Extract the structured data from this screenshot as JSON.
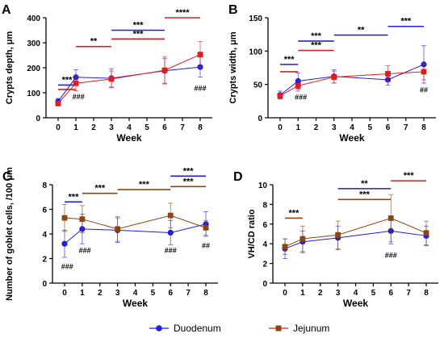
{
  "chart_data": [
    {
      "panel_label": "A",
      "type": "line",
      "ylabel": "Crypts depth, μm",
      "xlabel": "Week",
      "x_ticks": [
        0,
        1,
        2,
        3,
        4,
        5,
        6,
        7,
        8
      ],
      "ylim": [
        0,
        400
      ],
      "y_ticks": [
        0,
        100,
        200,
        300,
        400
      ],
      "series": [
        {
          "style": "duodenum",
          "x": [
            0,
            1,
            3,
            6,
            8
          ],
          "values": [
            65,
            162,
            158,
            188,
            203
          ],
          "err": [
            12,
            30,
            38,
            50,
            40
          ],
          "color": "#1f1fd6",
          "marker": "circle"
        },
        {
          "style": "jejunum",
          "x": [
            0,
            1,
            3,
            6,
            8
          ],
          "values": [
            57,
            138,
            155,
            190,
            253
          ],
          "err": [
            8,
            30,
            32,
            55,
            52
          ],
          "color": "#e21c1c",
          "marker": "square"
        }
      ],
      "significance": [
        {
          "x1": 0,
          "x2": 1,
          "y": 131,
          "label": "***",
          "color": "#1f1fd6"
        },
        {
          "x1": 0,
          "x2": 1,
          "y": 113,
          "label": "",
          "color": "#e21c1c"
        },
        {
          "x1": 1,
          "x2": 3,
          "y": 285,
          "label": "**",
          "color": "#e21c1c"
        },
        {
          "x1": 3,
          "x2": 6,
          "y": 350,
          "label": "***",
          "color": "#1f1fd6"
        },
        {
          "x1": 3,
          "x2": 6,
          "y": 315,
          "label": "***",
          "color": "#e21c1c"
        },
        {
          "x1": 6,
          "x2": 8,
          "y": 400,
          "label": "****",
          "color": "#e21c1c"
        }
      ],
      "annotations": [
        {
          "x": 1.15,
          "y": 75,
          "text": "###"
        },
        {
          "x": 8,
          "y": 108,
          "text": "###"
        }
      ]
    },
    {
      "panel_label": "B",
      "type": "line",
      "ylabel": "Crypts width, μm",
      "xlabel": "Week",
      "x_ticks": [
        0,
        1,
        2,
        3,
        4,
        5,
        6,
        7,
        8
      ],
      "ylim": [
        0,
        150
      ],
      "y_ticks": [
        0,
        50,
        100,
        150
      ],
      "series": [
        {
          "style": "duodenum",
          "x": [
            0,
            1,
            3,
            6,
            8
          ],
          "values": [
            34,
            55,
            62,
            57,
            80
          ],
          "err": [
            6,
            12,
            10,
            8,
            28
          ],
          "color": "#1f1fd6",
          "marker": "circle"
        },
        {
          "style": "jejunum",
          "x": [
            0,
            1,
            3,
            6,
            8
          ],
          "values": [
            33,
            48,
            61,
            66,
            69
          ],
          "err": [
            4,
            8,
            9,
            12,
            12
          ],
          "color": "#e21c1c",
          "marker": "square"
        }
      ],
      "significance": [
        {
          "x1": 0,
          "x2": 1,
          "y": 80,
          "label": "***",
          "color": "#1f1fd6"
        },
        {
          "x1": 0,
          "x2": 1,
          "y": 69,
          "label": "",
          "color": "#e21c1c"
        },
        {
          "x1": 1,
          "x2": 3,
          "y": 115,
          "label": "***",
          "color": "#1f1fd6"
        },
        {
          "x1": 1,
          "x2": 3,
          "y": 101,
          "label": "***",
          "color": "#e21c1c"
        },
        {
          "x1": 3,
          "x2": 6,
          "y": 124,
          "label": "**",
          "color": "#1f1fd6"
        },
        {
          "x1": 6,
          "x2": 8,
          "y": 137,
          "label": "***",
          "color": "#1f1fd6"
        }
      ],
      "annotations": [
        {
          "x": 1.15,
          "y": 27,
          "text": "###"
        },
        {
          "x": 8,
          "y": 38,
          "text": "##"
        }
      ]
    },
    {
      "panel_label": "C",
      "type": "line",
      "ylabel": "Number of goblet cells, /100 μm",
      "xlabel": "Week",
      "x_ticks": [
        0,
        1,
        2,
        3,
        4,
        5,
        6,
        7,
        8
      ],
      "ylim": [
        0,
        8
      ],
      "y_ticks": [
        0,
        2,
        4,
        6,
        8
      ],
      "series": [
        {
          "style": "duodenum",
          "x": [
            0,
            1,
            3,
            6,
            8
          ],
          "values": [
            3.2,
            4.4,
            4.3,
            4.1,
            4.8
          ],
          "err": [
            1.1,
            1.2,
            1.0,
            1.0,
            1.0
          ],
          "color": "#1f1fd6",
          "marker": "circle"
        },
        {
          "style": "jejunum",
          "x": [
            0,
            1,
            3,
            6,
            8
          ],
          "values": [
            5.3,
            5.2,
            4.4,
            5.5,
            4.5
          ],
          "err": [
            1.1,
            1.1,
            1.0,
            1.0,
            0.6
          ],
          "color": "#8b4513",
          "marker": "square"
        }
      ],
      "significance": [
        {
          "x1": 0,
          "x2": 1,
          "y": 6.6,
          "label": "***",
          "color": "#1f1fd6"
        },
        {
          "x1": 1,
          "x2": 3,
          "y": 7.3,
          "label": "***",
          "color": "#8b4513"
        },
        {
          "x1": 3,
          "x2": 6,
          "y": 7.6,
          "label": "***",
          "color": "#8b4513"
        },
        {
          "x1": 6,
          "x2": 8,
          "y": 8.7,
          "label": "***",
          "color": "#1f1fd6"
        },
        {
          "x1": 6,
          "x2": 8,
          "y": 7.85,
          "label": "***",
          "color": "#8b4513"
        }
      ],
      "annotations": [
        {
          "x": 0.15,
          "y": 1.15,
          "text": "###"
        },
        {
          "x": 1.15,
          "y": 2.45,
          "text": "###"
        },
        {
          "x": 6,
          "y": 2.45,
          "text": "###"
        },
        {
          "x": 8,
          "y": 2.85,
          "text": "##"
        }
      ]
    },
    {
      "panel_label": "D",
      "type": "line",
      "ylabel": "VH/CD ratio",
      "xlabel": "Week",
      "x_ticks": [
        0,
        1,
        2,
        3,
        4,
        5,
        6,
        7,
        8
      ],
      "ylim": [
        0,
        10
      ],
      "y_ticks": [
        0,
        2,
        4,
        6,
        8,
        10
      ],
      "series": [
        {
          "style": "duodenum",
          "x": [
            0,
            1,
            3,
            6,
            8
          ],
          "values": [
            3.5,
            4.2,
            4.6,
            5.3,
            4.8
          ],
          "err": [
            1.0,
            1.1,
            1.2,
            1.3,
            1.0
          ],
          "color": "#1f1fd6",
          "marker": "circle"
        },
        {
          "style": "jejunum",
          "x": [
            0,
            1,
            3,
            6,
            8
          ],
          "values": [
            3.7,
            4.5,
            4.9,
            6.6,
            5.1
          ],
          "err": [
            0.8,
            1.3,
            1.4,
            2.4,
            1.2
          ],
          "color": "#8b4513",
          "marker": "square"
        }
      ],
      "significance": [
        {
          "x1": 0,
          "x2": 1,
          "y": 6.6,
          "label": "***",
          "color": "#8b4513"
        },
        {
          "x1": 3,
          "x2": 6,
          "y": 9.6,
          "label": "**",
          "color": "#1f1fd6"
        },
        {
          "x1": 3,
          "x2": 6,
          "y": 8.5,
          "label": "***",
          "color": "#8b4513"
        },
        {
          "x1": 6,
          "x2": 8,
          "y": 10.4,
          "label": "***",
          "color": "#e21c1c"
        }
      ],
      "annotations": [
        {
          "x": 6,
          "y": 2.6,
          "text": "###"
        }
      ]
    }
  ],
  "legend": {
    "duodenum": {
      "label": "Duodenum",
      "color": "#1f1fd6",
      "marker": "circle"
    },
    "jejunum": {
      "label": "Jejunum",
      "color": "#8b4513",
      "marker": "square"
    }
  }
}
